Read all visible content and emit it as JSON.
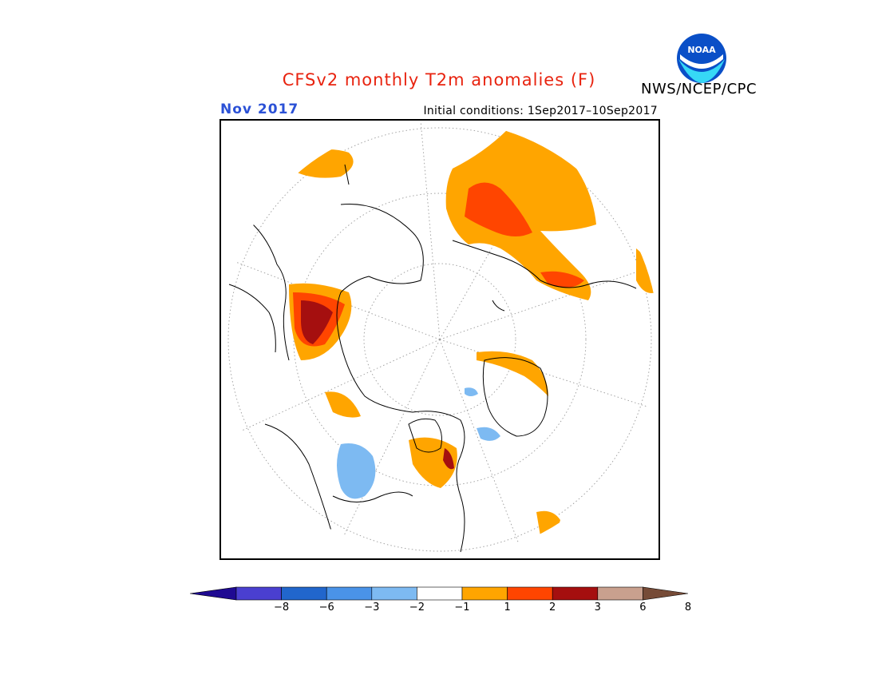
{
  "header": {
    "title": "CFSv2 monthly T2m anomalies (F)",
    "agency": "NWS/NCEP/CPC",
    "logo_text": "NOAA",
    "month": "Nov 2017",
    "initial_conditions": "Initial conditions: 1Sep2017–10Sep2017"
  },
  "colors": {
    "title": "#e8230f",
    "month": "#2b51d6"
  },
  "legend": {
    "ticks": [
      "−8",
      "−6",
      "−3",
      "−2",
      "−1",
      "1",
      "2",
      "3",
      "6",
      "8"
    ],
    "colors": [
      "#1f0a92",
      "#4a3fd0",
      "#2166cc",
      "#4a93e8",
      "#7dbaf2",
      "#ffffff",
      "#ffa500",
      "#ff4500",
      "#a50f0f",
      "#c9a08e",
      "#764b37"
    ]
  }
}
